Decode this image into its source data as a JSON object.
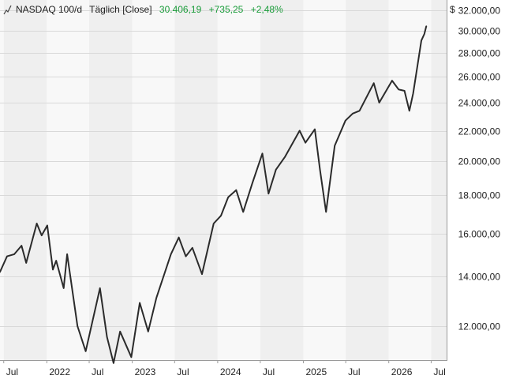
{
  "header": {
    "instrument": "NASDAQ 100/d",
    "interval": "Täglich [Close]",
    "last_value": "30.406,19",
    "change_abs": "+735,25",
    "change_pct": "+2,48%",
    "currency": "$"
  },
  "colors": {
    "line": "#2b2b2b",
    "positive": "#1a9c3a",
    "band_light": "#f8f8f8",
    "band_dark": "#efefef",
    "grid": "#d9d9d9",
    "axis_text": "#222222"
  },
  "chart_data": {
    "type": "line",
    "yscale": "log",
    "ylim": [
      10800,
      33000
    ],
    "xlim": [
      "2021-06-15",
      "2026-09-05"
    ],
    "yticks": [
      {
        "value": 12000,
        "label": "12.000,00"
      },
      {
        "value": 14000,
        "label": "14.000,00"
      },
      {
        "value": 16000,
        "label": "16.000,00"
      },
      {
        "value": 18000,
        "label": "18.000,00"
      },
      {
        "value": 20000,
        "label": "20.000,00"
      },
      {
        "value": 22000,
        "label": "22.000,00"
      },
      {
        "value": 24000,
        "label": "24.000,00"
      },
      {
        "value": 26000,
        "label": "26.000,00"
      },
      {
        "value": 28000,
        "label": "28.000,00"
      },
      {
        "value": 30000,
        "label": "30.000,00"
      },
      {
        "value": 32000,
        "label": "32.000,00"
      }
    ],
    "xticks": [
      {
        "date": "2021-07-01",
        "label": "Jul"
      },
      {
        "date": "2022-01-01",
        "label": "2022"
      },
      {
        "date": "2022-07-01",
        "label": "Jul"
      },
      {
        "date": "2023-01-01",
        "label": "2023"
      },
      {
        "date": "2023-07-01",
        "label": "Jul"
      },
      {
        "date": "2024-01-01",
        "label": "2024"
      },
      {
        "date": "2024-07-01",
        "label": "Jul"
      },
      {
        "date": "2025-01-01",
        "label": "2025"
      },
      {
        "date": "2025-07-01",
        "label": "Jul"
      },
      {
        "date": "2026-01-01",
        "label": "2026"
      },
      {
        "date": "2026-07-01",
        "label": "Jul"
      }
    ],
    "series": [
      {
        "x": [
          "2021-06-15",
          "2021-07-15",
          "2021-08-15",
          "2021-09-15",
          "2021-10-05",
          "2021-11-19",
          "2021-12-10",
          "2022-01-03",
          "2022-01-27",
          "2022-02-10",
          "2022-03-14",
          "2022-03-29",
          "2022-05-12",
          "2022-06-16",
          "2022-08-16",
          "2022-09-15",
          "2022-10-13",
          "2022-11-10",
          "2022-12-28",
          "2023-02-02",
          "2023-03-10",
          "2023-04-14",
          "2023-06-15",
          "2023-07-19",
          "2023-08-18",
          "2023-09-15",
          "2023-10-26",
          "2023-12-15",
          "2024-01-15",
          "2024-02-15",
          "2024-03-20",
          "2024-04-19",
          "2024-05-28",
          "2024-07-10",
          "2024-08-05",
          "2024-09-06",
          "2024-10-15",
          "2024-12-16",
          "2025-01-10",
          "2025-02-19",
          "2025-03-13",
          "2025-04-08",
          "2025-05-15",
          "2025-06-30",
          "2025-07-31",
          "2025-08-29",
          "2025-10-29",
          "2025-11-21",
          "2026-01-15",
          "2026-02-12",
          "2026-03-09",
          "2026-03-30",
          "2026-04-15",
          "2026-05-05",
          "2026-05-20",
          "2026-06-02",
          "2026-06-10"
        ],
        "y": [
          14200,
          14900,
          15000,
          15400,
          14600,
          16500,
          15900,
          16400,
          14300,
          14700,
          13500,
          15000,
          12000,
          11100,
          13500,
          11600,
          10700,
          11800,
          10900,
          12900,
          11800,
          13100,
          15000,
          15800,
          14900,
          15300,
          14100,
          16500,
          16900,
          17900,
          18300,
          17100,
          18700,
          20500,
          18100,
          19500,
          20300,
          22000,
          21200,
          22100,
          19500,
          17100,
          21000,
          22700,
          23200,
          23400,
          25500,
          24000,
          25700,
          25000,
          24900,
          23400,
          24700,
          27100,
          29100,
          29700,
          30406
        ]
      }
    ]
  }
}
